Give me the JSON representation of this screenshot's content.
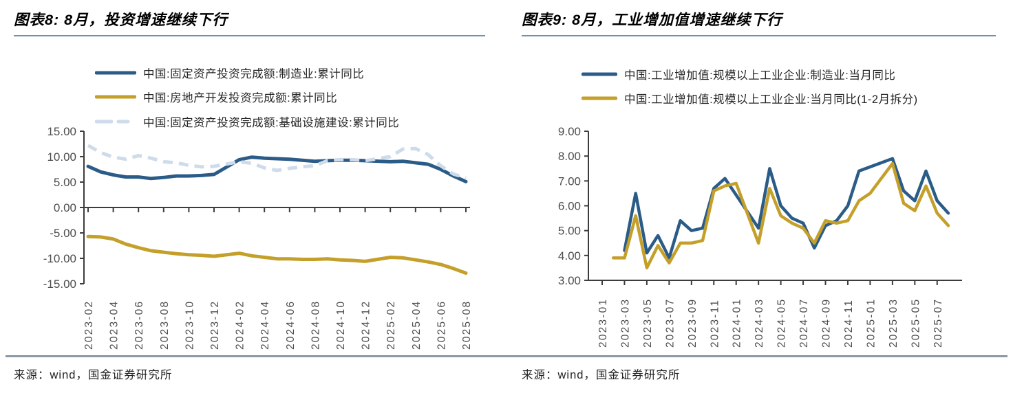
{
  "charts": [
    {
      "title": "图表8: 8月，投资增速继续下行",
      "source": "来源：wind，国金证券研究所"
    },
    {
      "title": "图表9: 8月，工业增加值增速继续下行",
      "source": "来源：wind，国金证券研究所"
    }
  ],
  "colors": {
    "title_rule": "#6b91ae",
    "footer_rule": "#8a97a4",
    "axis": "#3c3c3c",
    "tick_text": "#4d4d4d",
    "blue": "#2b5c88",
    "gold": "#c4a02b",
    "light_blue": "#cedbea"
  },
  "chart_data": [
    {
      "type": "line",
      "title": "图表8: 8月，投资增速继续下行",
      "xlabel": "",
      "ylabel": "",
      "ylim": [
        -15,
        15
      ],
      "x_axis_at": 0,
      "grid": false,
      "legend_position": "top-left",
      "ytick_labels": [
        "15.00",
        "10.00",
        "5.00",
        "0.00",
        "-5.00",
        "-10.00",
        "-15.00"
      ],
      "yticks": [
        15,
        10,
        5,
        0,
        -5,
        -10,
        -15
      ],
      "months": [
        "2023-02",
        "2023-03",
        "2023-04",
        "2023-05",
        "2023-06",
        "2023-07",
        "2023-08",
        "2023-09",
        "2023-10",
        "2023-11",
        "2023-12",
        "2024-01",
        "2024-02",
        "2024-03",
        "2024-04",
        "2024-05",
        "2024-06",
        "2024-07",
        "2024-08",
        "2024-09",
        "2024-10",
        "2024-11",
        "2024-12",
        "2025-01",
        "2025-02",
        "2025-03",
        "2025-04",
        "2025-05",
        "2025-06",
        "2025-07",
        "2025-08"
      ],
      "x_tick_labels": [
        "2023-02",
        "2023-04",
        "2023-06",
        "2023-08",
        "2023-10",
        "2023-12",
        "2024-02",
        "2024-04",
        "2024-06",
        "2024-08",
        "2024-10",
        "2024-12",
        "2025-02",
        "2025-04",
        "2025-06",
        "2025-08"
      ],
      "series": [
        {
          "name": "中国:固定资产投资完成额:制造业:累计同比",
          "color": "#2b5c88",
          "style": "solid",
          "values": [
            8.1,
            7.0,
            6.4,
            6.0,
            6.0,
            5.7,
            5.9,
            6.2,
            6.2,
            6.3,
            6.5,
            null,
            9.4,
            9.9,
            9.7,
            9.6,
            9.5,
            9.3,
            9.1,
            9.2,
            9.3,
            9.3,
            9.2,
            null,
            9.0,
            9.1,
            8.8,
            8.5,
            7.5,
            6.2,
            5.1
          ]
        },
        {
          "name": "中国:房地产开发投资完成额:累计同比",
          "color": "#c4a02b",
          "style": "solid",
          "values": [
            -5.7,
            -5.8,
            -6.2,
            -7.2,
            -7.9,
            -8.5,
            -8.8,
            -9.1,
            -9.3,
            -9.4,
            -9.6,
            null,
            -9.0,
            -9.5,
            -9.8,
            -10.1,
            -10.1,
            -10.2,
            -10.2,
            -10.1,
            -10.3,
            -10.4,
            -10.6,
            null,
            -9.8,
            -9.9,
            -10.3,
            -10.7,
            -11.2,
            -12.0,
            -12.9
          ]
        },
        {
          "name": "中国:固定资产投资完成额:基础设施建设:累计同比",
          "color": "#cedbea",
          "style": "dashed",
          "values": [
            12.2,
            10.8,
            9.9,
            9.5,
            10.2,
            9.7,
            9.0,
            8.8,
            8.3,
            8.0,
            8.1,
            null,
            9.0,
            8.7,
            7.8,
            7.3,
            7.7,
            8.0,
            8.2,
            9.2,
            9.4,
            9.4,
            9.2,
            null,
            10.0,
            11.5,
            11.6,
            10.4,
            8.2,
            6.6,
            5.8
          ]
        }
      ]
    },
    {
      "type": "line",
      "title": "图表9: 8月，工业增加值增速继续下行",
      "xlabel": "",
      "ylabel": "",
      "ylim": [
        3,
        9
      ],
      "x_axis_at": 3,
      "grid": false,
      "legend_position": "top-left",
      "ytick_labels": [
        "9.00",
        "8.00",
        "7.00",
        "6.00",
        "5.00",
        "4.00",
        "3.00"
      ],
      "yticks": [
        9,
        8,
        7,
        6,
        5,
        4,
        3
      ],
      "months": [
        "2023-01",
        "2023-02",
        "2023-03",
        "2023-04",
        "2023-05",
        "2023-06",
        "2023-07",
        "2023-08",
        "2023-09",
        "2023-10",
        "2023-11",
        "2023-12",
        "2024-01",
        "2024-02",
        "2024-03",
        "2024-04",
        "2024-05",
        "2024-06",
        "2024-07",
        "2024-08",
        "2024-09",
        "2024-10",
        "2024-11",
        "2024-12",
        "2025-01",
        "2025-02",
        "2025-03",
        "2025-04",
        "2025-05",
        "2025-06",
        "2025-07",
        "2025-08"
      ],
      "x_tick_labels": [
        "2023-01",
        "2023-03",
        "2023-05",
        "2023-07",
        "2023-09",
        "2023-11",
        "2024-01",
        "2024-03",
        "2024-05",
        "2024-07",
        "2024-09",
        "2024-11",
        "2025-01",
        "2025-03",
        "2025-05",
        "2025-07"
      ],
      "series": [
        {
          "name": "中国:工业增加值:规模以上工业企业:制造业:当月同比",
          "color": "#2b5c88",
          "style": "solid",
          "values": [
            null,
            null,
            4.2,
            6.5,
            4.1,
            4.8,
            3.9,
            5.4,
            5.0,
            5.1,
            6.7,
            7.1,
            null,
            null,
            5.1,
            7.5,
            6.0,
            5.5,
            5.3,
            4.3,
            5.2,
            5.4,
            6.0,
            7.4,
            null,
            null,
            7.9,
            6.6,
            6.2,
            7.4,
            6.2,
            5.7
          ]
        },
        {
          "name": "中国:工业增加值:规模以上工业企业:当月同比(1-2月拆分)",
          "color": "#c4a02b",
          "style": "solid",
          "values": [
            null,
            3.9,
            3.9,
            5.6,
            3.5,
            4.4,
            3.7,
            4.5,
            4.5,
            4.6,
            6.6,
            6.8,
            6.9,
            5.7,
            4.5,
            6.7,
            5.6,
            5.3,
            5.1,
            4.5,
            5.4,
            5.3,
            5.4,
            6.2,
            6.5,
            7.1,
            7.7,
            6.1,
            5.8,
            6.8,
            5.7,
            5.2
          ]
        }
      ]
    }
  ]
}
